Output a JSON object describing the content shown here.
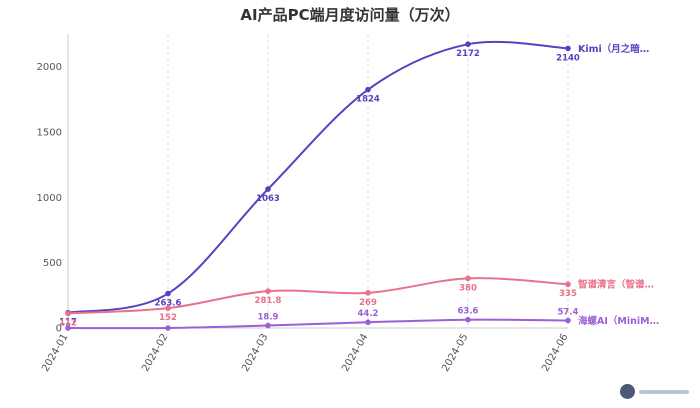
{
  "chart_data": {
    "type": "line",
    "title": "AI产品PC端月度访问量（万次）",
    "xlabel": "",
    "ylabel": "",
    "categories": [
      "2024-01",
      "2024-02",
      "2024-03",
      "2024-04",
      "2024-05",
      "2024-06"
    ],
    "ylim": [
      0,
      2250
    ],
    "yticks": [
      0,
      500,
      1000,
      1500,
      2000
    ],
    "grid": {
      "x": true,
      "y": false
    },
    "legend": "end-labels",
    "series": [
      {
        "name": "Kimi（月之暗…",
        "color": "#5a3fc0",
        "values": [
          117,
          263.6,
          1063,
          1824,
          2172,
          2140
        ],
        "labels": [
          "117",
          "263.6",
          "1063",
          "1824",
          "2172",
          "2140"
        ]
      },
      {
        "name": "智谱清言（智谱…",
        "color": "#e8728a",
        "values": [
          112,
          152,
          281.8,
          269,
          380,
          335
        ],
        "labels": [
          "112",
          "152",
          "281.8",
          "269",
          "380",
          "335"
        ]
      },
      {
        "name": "海螺AI（MiniM…",
        "color": "#9b5fd6",
        "values": [
          0,
          0,
          18.9,
          44.2,
          63.6,
          57.4
        ],
        "labels": [
          "",
          "",
          "18.9",
          "44.2",
          "63.6",
          "57.4"
        ]
      }
    ]
  }
}
